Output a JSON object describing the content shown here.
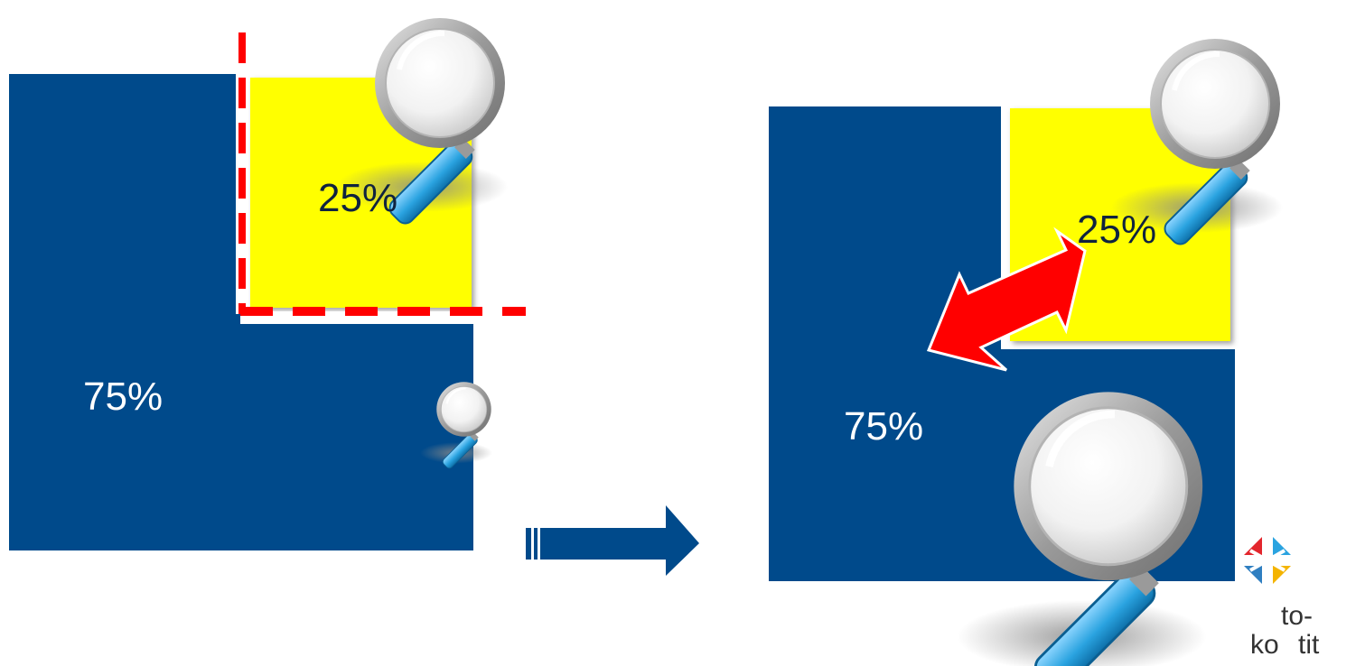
{
  "left_diagram": {
    "large_share": "75%",
    "small_share": "25%"
  },
  "right_diagram": {
    "large_share": "75%",
    "small_share": "25%"
  },
  "logo": {
    "line1": "to-",
    "line2": "ko",
    "line2_end": "tit"
  },
  "colors": {
    "navy": "#004a8b",
    "yellow": "#ffff00",
    "red": "#ff0000",
    "magnifier_handle": "#2aa3e0"
  },
  "icons": [
    "magnifier-icon",
    "right-arrow-icon",
    "double-arrow-icon",
    "snowflake-logo-icon"
  ]
}
